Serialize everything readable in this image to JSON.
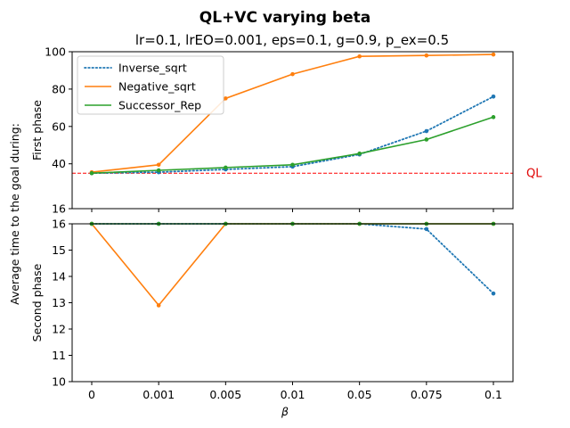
{
  "chart_data": {
    "type": "line",
    "title": "QL+VC varying beta",
    "subtitle": "lr=0.1, lrEO=0.001, eps=0.1, g=0.9, p_ex=0.5",
    "xlabel": "β",
    "shared_ylabel": "Average time to the goal during:",
    "categories": [
      "0",
      "0.001",
      "0.005",
      "0.01",
      "0.05",
      "0.075",
      "0.1"
    ],
    "legend_placement": "upper-left",
    "grid": false,
    "colors": {
      "Inverse_sqrt": "#1f77b4",
      "Negative_sqrt": "#ff7f0e",
      "Successor_Rep": "#2ca02c",
      "QL": "#ff0000"
    },
    "panels": [
      {
        "ylabel": "First phase",
        "ylim": [
          16,
          100
        ],
        "yticks": [
          "16",
          "40",
          "60",
          "80",
          "100"
        ],
        "hline": {
          "label": "QL",
          "value": 35
        },
        "series": [
          {
            "name": "Inverse_sqrt",
            "style": "dotted",
            "values": [
              35,
              35.5,
              37,
              38.5,
              45,
              57.5,
              76
            ]
          },
          {
            "name": "Negative_sqrt",
            "style": "solid",
            "values": [
              35.5,
              39.5,
              75,
              88,
              97.5,
              98,
              98.5
            ]
          },
          {
            "name": "Successor_Rep",
            "style": "solid",
            "values": [
              35,
              36.5,
              38,
              39.5,
              45.5,
              53,
              65
            ]
          }
        ]
      },
      {
        "ylabel": "Second phase",
        "ylim": [
          10,
          16
        ],
        "yticks": [
          "10",
          "11",
          "12",
          "13",
          "14",
          "15",
          "16"
        ],
        "series": [
          {
            "name": "Inverse_sqrt",
            "style": "dotted",
            "values": [
              16,
              16,
              16,
              16,
              16,
              15.8,
              13.35
            ]
          },
          {
            "name": "Negative_sqrt",
            "style": "solid",
            "values": [
              16,
              12.9,
              16,
              16,
              16,
              16,
              16
            ]
          },
          {
            "name": "Successor_Rep",
            "style": "solid",
            "values": [
              16,
              16,
              16,
              16,
              16,
              16,
              16
            ]
          }
        ]
      }
    ]
  }
}
